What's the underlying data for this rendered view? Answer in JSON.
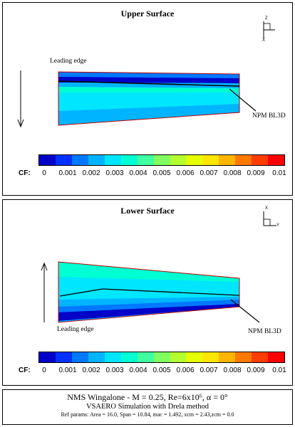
{
  "upper": {
    "title": "Upper Surface",
    "leading_edge_label": "Leading edge",
    "npm_label": "NPM BL3D",
    "cf_label": "CF:",
    "axis_labels": {
      "top": "Z",
      "bottom": "X"
    }
  },
  "lower": {
    "title": "Lower Surface",
    "leading_edge_label": "Leading edge",
    "npm_label": "NPM BL3D",
    "cf_label": "CF:",
    "axis_labels": {
      "top": "X",
      "right": "Y"
    }
  },
  "colorbar": {
    "ticks": [
      "0",
      "0.001",
      "0.002",
      "0.003",
      "0.004",
      "0.005",
      "0.006",
      "0.007",
      "0.008",
      "0.009",
      "0.01"
    ],
    "colors": [
      "#0000c8",
      "#0030ff",
      "#0078ff",
      "#00b4ff",
      "#00e6ff",
      "#00ffd2",
      "#40ffa0",
      "#80ff60",
      "#b4ff30",
      "#e6ff00",
      "#ffe600",
      "#ffb400",
      "#ff7800",
      "#ff3c00",
      "#ff0000"
    ]
  },
  "caption": {
    "line1": "NMS Wingalone - M = 0.25, Re=6x10⁶, α = 0°",
    "line2": "VSAERO Simulation with Drela method",
    "line3": "Ref params: Area = 16.0, Span = 10.84, mac = 1.492, xcm = 2.43,zcm = 0.0"
  }
}
